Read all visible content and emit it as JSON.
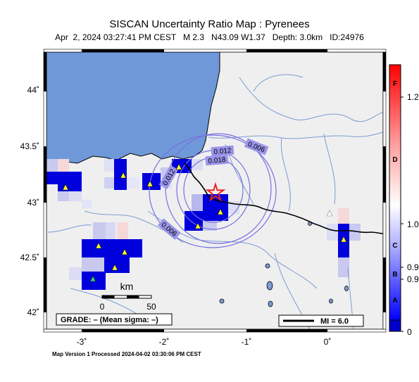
{
  "header": {
    "title": "SISCAN Uncertainty Ratio Map : Pyrenees",
    "event_line": "Apr  2, 2024 03:27:41 PM CEST   M 2.3   N43.09 W1.37   Depth: 3.0km   ID:24976"
  },
  "map": {
    "lat_ticks": [
      "44˚",
      "43.5˚",
      "43˚",
      "42.5˚",
      "42˚"
    ],
    "lon_ticks": [
      "-3˚",
      "-2˚",
      "-1˚",
      "0˚"
    ],
    "contour_labels": [
      "0.006",
      "0.012",
      "0.018",
      "0.012",
      "0.006"
    ],
    "scale_bar": {
      "unit": "km",
      "labels": [
        "0",
        "50"
      ]
    },
    "grade_box": "GRADE: – (Mean sigma: –)",
    "mi_legend": "MI = 6.0",
    "epicenter": {
      "lat": 43.09,
      "lon": -1.37
    },
    "colors": {
      "ocean": "#6f98d8",
      "land": "#efefef",
      "high_ratio": "#0000dd",
      "border": "#000000",
      "rivers": "#7c9bd4",
      "contours": "#7a6fe0",
      "station_fill": "#ffff33",
      "epicenter": "#ee2222"
    }
  },
  "colorbar": {
    "ticks": [
      "0",
      "0.9",
      "0.9",
      "1.0",
      "1.2"
    ],
    "grades": [
      "A",
      "B",
      "C",
      "D",
      "F"
    ],
    "colors": {
      "top": "#ff0000",
      "mid": "#ffffff",
      "bottom": "#0000ff"
    }
  },
  "footer": {
    "text": "Map Version 1 Processed 2024-04-02 03:30:06 PM CEST"
  }
}
